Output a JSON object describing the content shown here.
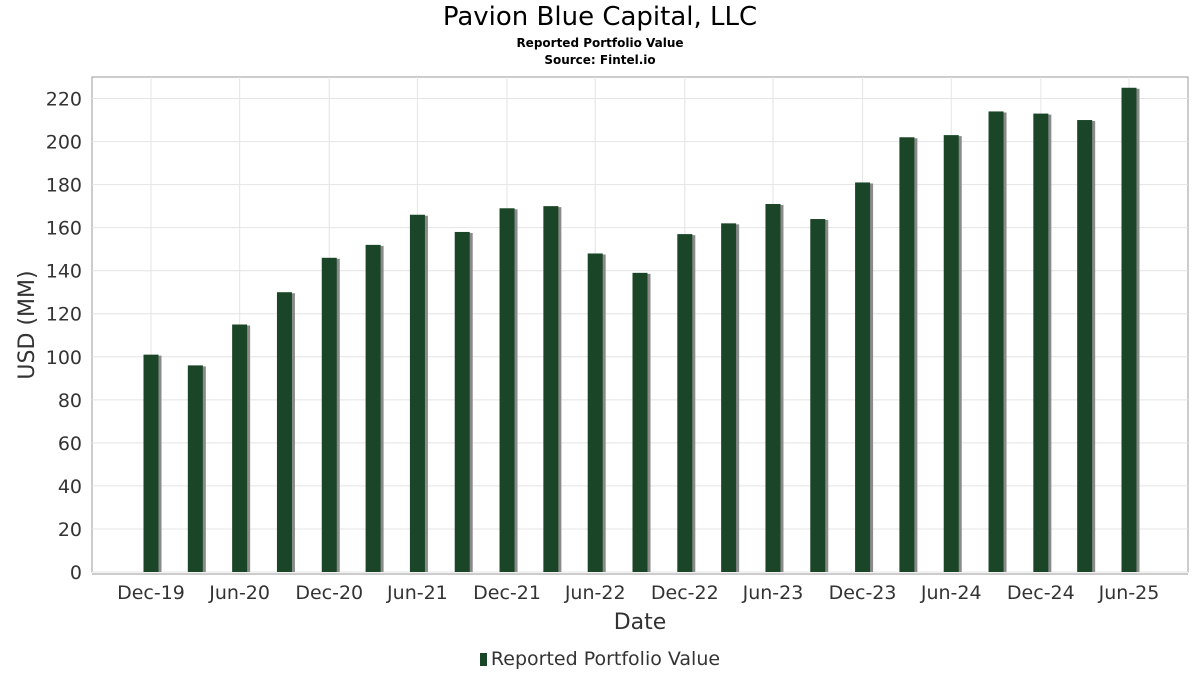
{
  "header": {
    "title": "Pavion Blue Capital, LLC",
    "subtitle": "Reported Portfolio Value",
    "source": "Source: Fintel.io"
  },
  "legend": {
    "label": "Reported Portfolio Value"
  },
  "colors": {
    "bar": "#1a4526",
    "bar_shadow": "#8a8a8a",
    "grid": "#e4e4e4",
    "axis_text": "#333333"
  },
  "chart_data": {
    "type": "bar",
    "xlabel": "Date",
    "ylabel": "USD (MM)",
    "ylim": [
      0,
      230
    ],
    "yticks": [
      0,
      20,
      40,
      60,
      80,
      100,
      120,
      140,
      160,
      180,
      200,
      220
    ],
    "xtick_labels": [
      "Dec-19",
      "Jun-20",
      "Dec-20",
      "Jun-21",
      "Dec-21",
      "Jun-22",
      "Dec-22",
      "Jun-23",
      "Dec-23",
      "Jun-24",
      "Dec-24",
      "Jun-25"
    ],
    "grid": true,
    "legend_position": "bottom",
    "series": [
      {
        "name": "Reported Portfolio Value",
        "x": [
          "2019-12-31",
          "2020-03-31",
          "2020-06-30",
          "2020-09-30",
          "2020-12-31",
          "2021-03-31",
          "2021-06-30",
          "2021-09-30",
          "2021-12-31",
          "2022-03-31",
          "2022-06-30",
          "2022-09-30",
          "2022-12-31",
          "2023-03-31",
          "2023-06-30",
          "2023-09-30",
          "2023-12-31",
          "2024-03-31",
          "2024-06-30",
          "2024-09-30",
          "2024-12-31",
          "2025-03-31",
          "2025-06-30"
        ],
        "values": [
          101,
          96,
          115,
          130,
          146,
          152,
          166,
          158,
          169,
          170,
          148,
          139,
          157,
          162,
          171,
          164,
          181,
          202,
          203,
          214,
          213,
          210,
          225
        ]
      }
    ]
  }
}
